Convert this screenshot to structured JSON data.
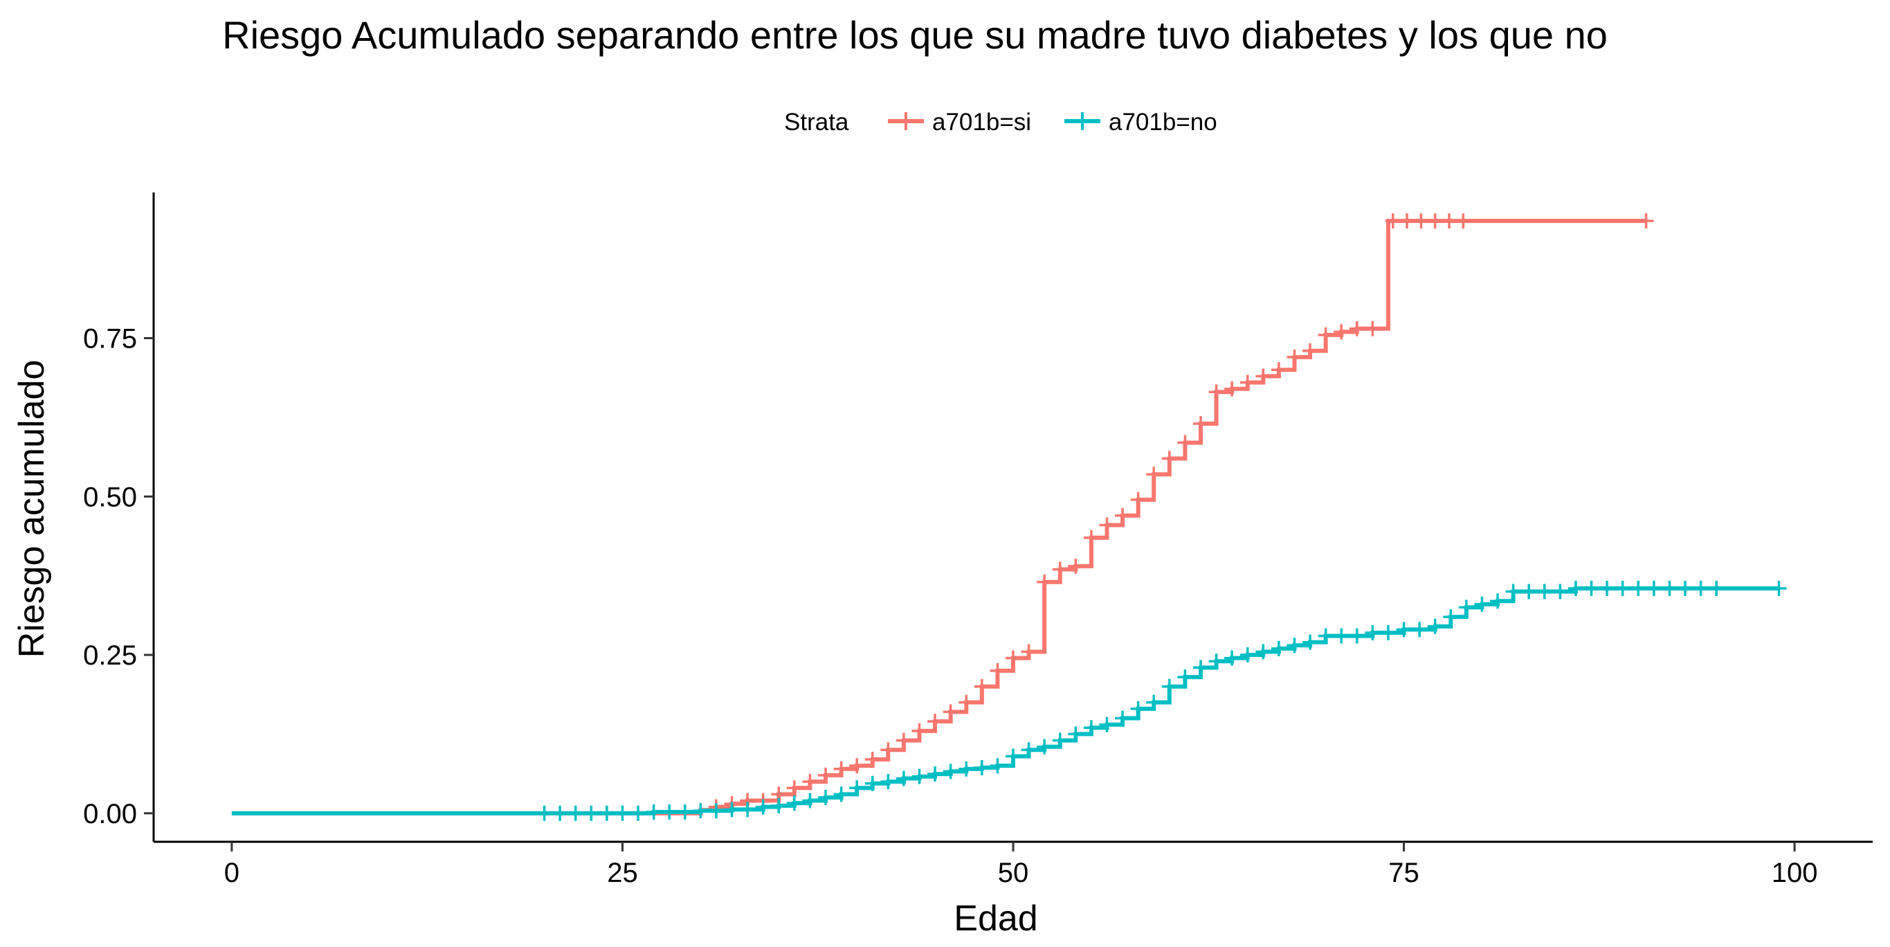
{
  "chart_data": {
    "type": "line",
    "title": "Riesgo Acumulado separando entre los que su madre tuvo diabetes y los que no",
    "xlabel": "Edad",
    "ylabel": "Riesgo acumulado",
    "xlim": [
      -5,
      105
    ],
    "ylim": [
      -0.045,
      0.98
    ],
    "x_ticks": [
      0,
      25,
      50,
      75,
      100
    ],
    "x_tick_labels": [
      "0",
      "25",
      "50",
      "75",
      "100"
    ],
    "y_ticks": [
      0,
      0.25,
      0.5,
      0.75
    ],
    "y_tick_labels": [
      "0.00",
      "0.25",
      "0.50",
      "0.75"
    ],
    "grid": false,
    "legend": {
      "title": "Strata",
      "position": "top"
    },
    "series": [
      {
        "name": "a701b=si",
        "color": "#F8766D",
        "step": [
          [
            0,
            0
          ],
          [
            29,
            0
          ],
          [
            30,
            0.005
          ],
          [
            31,
            0.01
          ],
          [
            32,
            0.015
          ],
          [
            33,
            0.02
          ],
          [
            35,
            0.03
          ],
          [
            36,
            0.04
          ],
          [
            37,
            0.05
          ],
          [
            38,
            0.06
          ],
          [
            39,
            0.07
          ],
          [
            40,
            0.075
          ],
          [
            41,
            0.085
          ],
          [
            42,
            0.1
          ],
          [
            43,
            0.115
          ],
          [
            44,
            0.13
          ],
          [
            45,
            0.145
          ],
          [
            46,
            0.16
          ],
          [
            47,
            0.175
          ],
          [
            48,
            0.2
          ],
          [
            49,
            0.225
          ],
          [
            50,
            0.245
          ],
          [
            51,
            0.255
          ],
          [
            52,
            0.365
          ],
          [
            53,
            0.385
          ],
          [
            54,
            0.39
          ],
          [
            55,
            0.435
          ],
          [
            56,
            0.455
          ],
          [
            57,
            0.47
          ],
          [
            58,
            0.495
          ],
          [
            59,
            0.535
          ],
          [
            60,
            0.56
          ],
          [
            61,
            0.585
          ],
          [
            62,
            0.615
          ],
          [
            63,
            0.665
          ],
          [
            64,
            0.67
          ],
          [
            65,
            0.68
          ],
          [
            66,
            0.69
          ],
          [
            67,
            0.7
          ],
          [
            68,
            0.72
          ],
          [
            69,
            0.73
          ],
          [
            70,
            0.755
          ],
          [
            71,
            0.76
          ],
          [
            72,
            0.765
          ],
          [
            74,
            0.935
          ],
          [
            90.5,
            0.935
          ]
        ],
        "censor_x": [
          31,
          32,
          33,
          34,
          35,
          36,
          37,
          38,
          39,
          40,
          41,
          42,
          43,
          44,
          45,
          46,
          47,
          48,
          49,
          50,
          51,
          52,
          53,
          54,
          55,
          56,
          57,
          58,
          59,
          60,
          61,
          62,
          63,
          64,
          65,
          66,
          67,
          68,
          69,
          70,
          71,
          72,
          73,
          74.3,
          75.2,
          76.1,
          77,
          77.9,
          78.8,
          90.5
        ]
      },
      {
        "name": "a701b=no",
        "color": "#00BFC4",
        "step": [
          [
            0,
            0
          ],
          [
            24,
            0
          ],
          [
            27,
            0.002
          ],
          [
            30,
            0.004
          ],
          [
            32,
            0.006
          ],
          [
            34,
            0.01
          ],
          [
            35,
            0.012
          ],
          [
            36,
            0.016
          ],
          [
            37,
            0.02
          ],
          [
            38,
            0.025
          ],
          [
            39,
            0.03
          ],
          [
            40,
            0.04
          ],
          [
            41,
            0.047
          ],
          [
            42,
            0.05
          ],
          [
            43,
            0.055
          ],
          [
            44,
            0.058
          ],
          [
            45,
            0.062
          ],
          [
            46,
            0.066
          ],
          [
            47,
            0.07
          ],
          [
            48,
            0.072
          ],
          [
            49,
            0.075
          ],
          [
            50,
            0.09
          ],
          [
            51,
            0.1
          ],
          [
            52,
            0.105
          ],
          [
            53,
            0.115
          ],
          [
            54,
            0.125
          ],
          [
            55,
            0.135
          ],
          [
            56,
            0.14
          ],
          [
            57,
            0.15
          ],
          [
            58,
            0.165
          ],
          [
            59,
            0.175
          ],
          [
            60,
            0.2
          ],
          [
            61,
            0.215
          ],
          [
            62,
            0.23
          ],
          [
            63,
            0.24
          ],
          [
            64,
            0.245
          ],
          [
            65,
            0.25
          ],
          [
            66,
            0.255
          ],
          [
            67,
            0.26
          ],
          [
            68,
            0.265
          ],
          [
            69,
            0.27
          ],
          [
            70,
            0.28
          ],
          [
            73,
            0.285
          ],
          [
            75,
            0.29
          ],
          [
            77,
            0.295
          ],
          [
            78,
            0.31
          ],
          [
            79,
            0.325
          ],
          [
            80,
            0.33
          ],
          [
            81,
            0.335
          ],
          [
            82,
            0.35
          ],
          [
            86,
            0.355
          ],
          [
            99,
            0.355
          ]
        ],
        "censor_x": [
          20,
          21,
          22,
          23,
          24,
          25,
          26,
          27,
          28,
          29,
          30,
          31,
          32,
          33,
          34,
          35,
          36,
          37,
          38,
          39,
          40,
          41,
          42,
          43,
          44,
          45,
          46,
          47,
          48,
          49,
          50,
          51,
          52,
          53,
          54,
          55,
          56,
          57,
          58,
          59,
          60,
          61,
          62,
          63,
          64,
          65,
          66,
          67,
          68,
          69,
          70,
          71,
          72,
          73,
          74,
          75,
          76,
          77,
          78,
          79,
          80,
          81,
          82,
          83,
          84,
          85,
          86,
          87,
          88,
          89,
          90,
          91,
          92,
          93,
          94,
          95,
          99
        ]
      }
    ]
  }
}
